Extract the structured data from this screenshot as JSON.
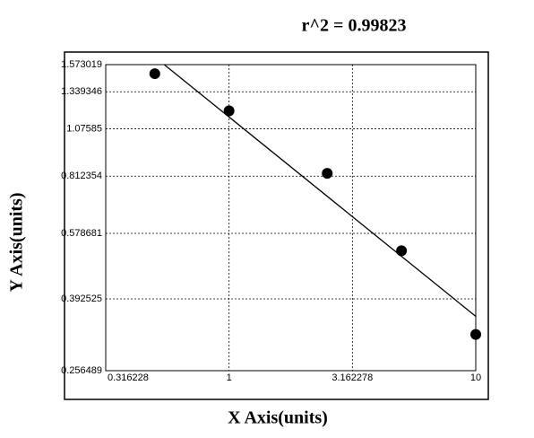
{
  "chart_data": {
    "type": "scatter",
    "title": "r^2  =  0.99823",
    "x_label": "X Axis(units)",
    "y_label": "Y Axis(units)",
    "x": [
      0.5,
      1,
      2.5,
      5,
      10
    ],
    "values": [
      1.491,
      1.196,
      0.826,
      0.522,
      0.318
    ],
    "color": "#000000",
    "xlim": [
      0.316228,
      10
    ],
    "xticks": [
      0.316228,
      1,
      3.162278,
      10
    ],
    "ylim": [
      0.256489,
      1.573019
    ],
    "yticks": [
      0.256489,
      0.392525,
      0.578681,
      0.812354,
      1.07585,
      1.339346,
      1.573019
    ],
    "xscale": "log",
    "yscale": "log",
    "grid": true
  }
}
